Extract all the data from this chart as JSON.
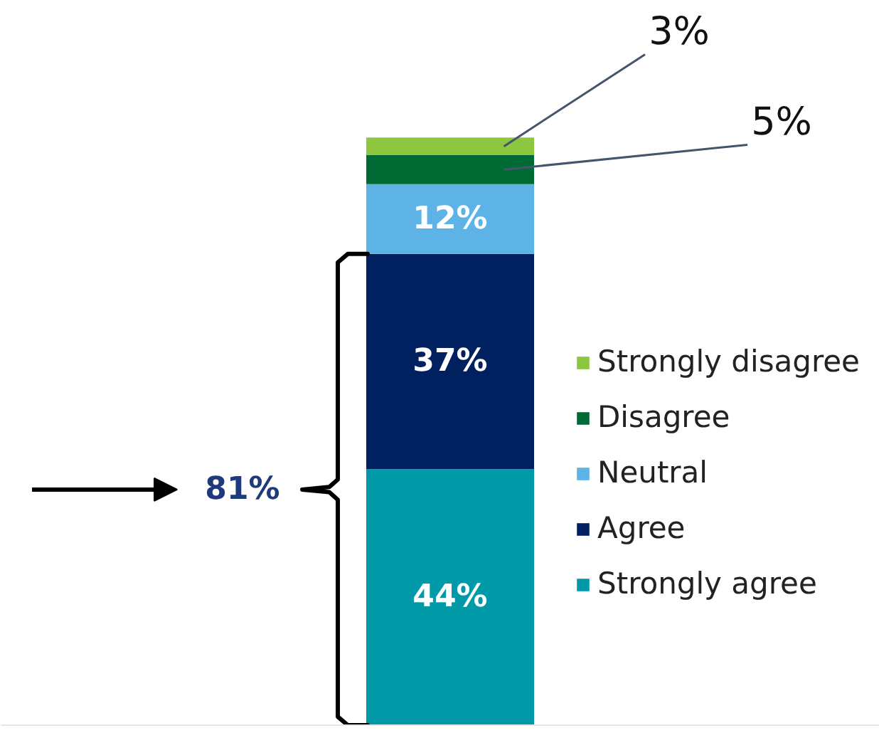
{
  "chart_data": {
    "type": "bar",
    "stacked": true,
    "categories": [
      null
    ],
    "series": [
      {
        "name": "Strongly agree",
        "color": "#0099a8",
        "values": [
          44
        ],
        "value_labels": [
          "44%"
        ]
      },
      {
        "name": "Agree",
        "color": "#002060",
        "values": [
          37
        ],
        "value_labels": [
          "37%"
        ]
      },
      {
        "name": "Neutral",
        "color": "#5db3e6",
        "values": [
          12
        ],
        "value_labels": [
          "12%"
        ]
      },
      {
        "name": "Disagree",
        "color": "#006a35",
        "values": [
          5
        ],
        "value_labels": [
          "5%"
        ]
      },
      {
        "name": "Strongly disagree",
        "color": "#8dc63f",
        "values": [
          3
        ],
        "value_labels": [
          "3%"
        ]
      }
    ],
    "annotations": [
      "81%"
    ],
    "legend": "right"
  }
}
